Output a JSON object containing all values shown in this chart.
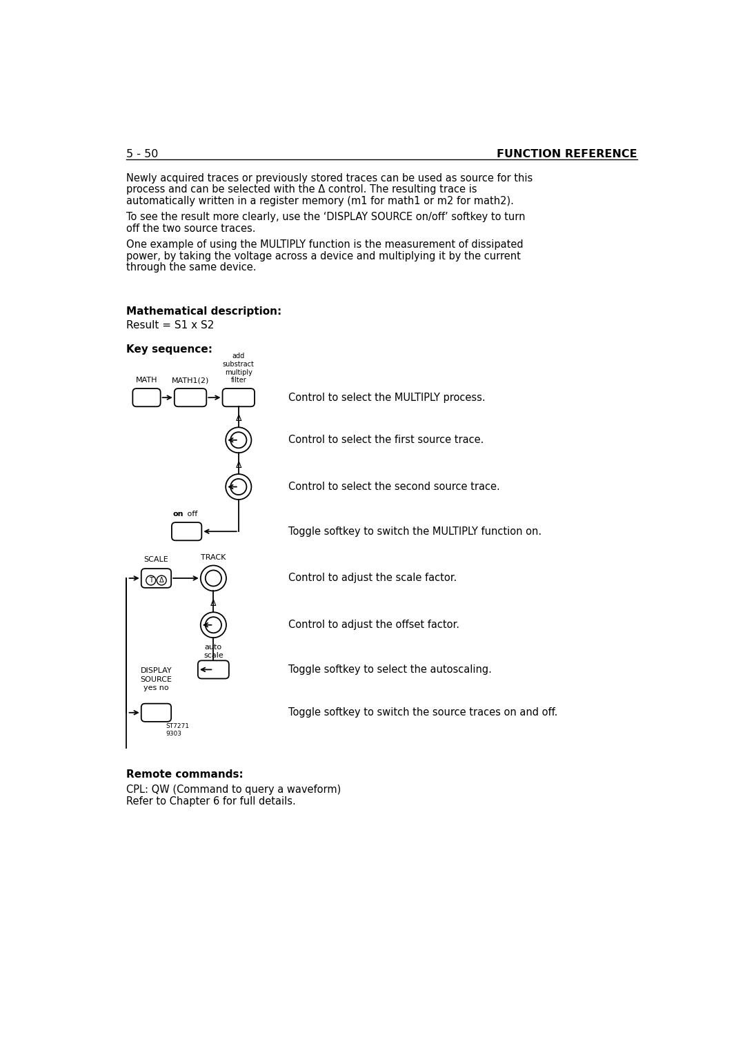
{
  "page_num": "5 - 50",
  "page_header": "FUNCTION REFERENCE",
  "bg_color": "#ffffff",
  "text_color": "#000000",
  "body_text": [
    "Newly acquired traces or previously stored traces can be used as source for this",
    "process and can be selected with the Δ control. The resulting trace is",
    "automatically written in a register memory (m1 for math1 or m2 for math2).",
    "",
    "To see the result more clearly, use the ‘DISPLAY SOURCE on/off’ softkey to turn",
    "off the two source traces.",
    "",
    "One example of using the MULTIPLY function is the measurement of dissipated",
    "power, by taking the voltage across a device and multiplying it by the current",
    "through the same device."
  ],
  "math_desc_label": "Mathematical description:",
  "math_formula": "Result = S1 x S2",
  "key_seq_label": "Key sequence:",
  "diagram_descriptions": [
    "Control to select the MULTIPLY process.",
    "Control to select the first source trace.",
    "Control to select the second source trace.",
    "Toggle softkey to switch the MULTIPLY function on.",
    "Control to adjust the scale factor.",
    "Control to adjust the offset factor.",
    "Toggle softkey to select the autoscaling.",
    "Toggle softkey to switch the source traces on and off."
  ],
  "remote_label": "Remote commands:",
  "remote_text": [
    "CPL: QW (Command to query a waveform)",
    "Refer to Chapter 6 for full details."
  ]
}
